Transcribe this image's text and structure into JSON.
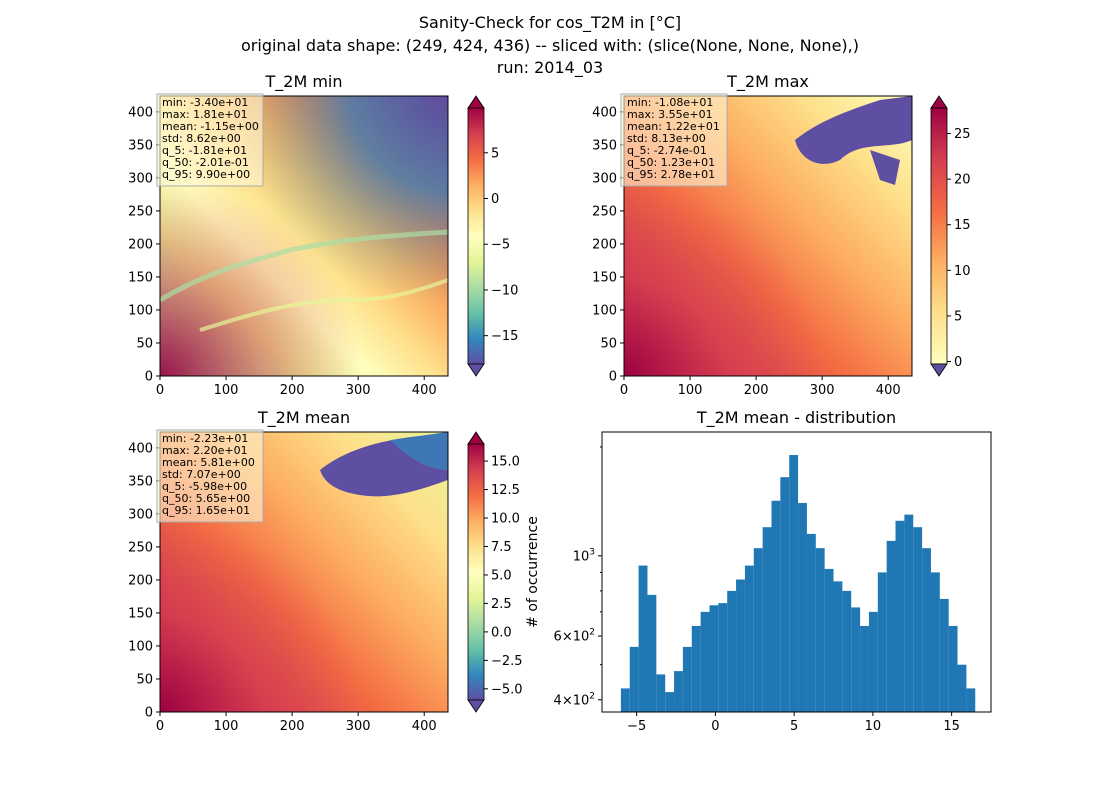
{
  "suptitle": [
    "Sanity-Check for cos_T2M in [°C]",
    "original data shape: (249, 424, 436) -- sliced with: (slice(None, None, None),)",
    "run: 2014_03"
  ],
  "colors": {
    "spectral": [
      "#5e4fa2",
      "#3288bd",
      "#66c2a5",
      "#abdda4",
      "#e6f598",
      "#ffffbf",
      "#fee08b",
      "#fdae61",
      "#f46d43",
      "#d53e4f",
      "#9e0142"
    ],
    "bar": "#1f77b4",
    "stats_box": "#fff7d6"
  },
  "map_axes": {
    "x_ticks": [
      0,
      100,
      200,
      300,
      400
    ],
    "y_ticks": [
      0,
      50,
      100,
      150,
      200,
      250,
      300,
      350,
      400
    ],
    "x_range": [
      0,
      436
    ],
    "y_range": [
      0,
      424
    ]
  },
  "panels": {
    "min": {
      "title": "T_2M min",
      "stats": [
        "min: -3.40e+01",
        "max: 1.81e+01",
        "mean: -1.15e+00",
        "std: 8.62e+00",
        "q_5: -1.81e+01",
        "q_50: -2.01e-01",
        "q_95: 9.90e+00"
      ],
      "colorbar": {
        "range": [
          -18.1,
          9.9
        ],
        "ticks": [
          5,
          0,
          -5,
          -10,
          -15
        ],
        "tick_labels": [
          "5",
          "0",
          "−5",
          "−10",
          "−15"
        ]
      }
    },
    "max": {
      "title": "T_2M max",
      "stats": [
        "min: -1.08e+01",
        "max: 3.55e+01",
        "mean: 1.22e+01",
        "std: 8.13e+00",
        "q_5: -2.74e-01",
        "q_50: 1.23e+01",
        "q_95: 2.78e+01"
      ],
      "colorbar": {
        "range": [
          -0.274,
          27.8
        ],
        "ticks": [
          25,
          20,
          15,
          10,
          5,
          0
        ],
        "tick_labels": [
          "25",
          "20",
          "15",
          "10",
          "5",
          "0"
        ]
      }
    },
    "mean": {
      "title": "T_2M mean",
      "stats": [
        "min: -2.23e+01",
        "max: 2.20e+01",
        "mean: 5.81e+00",
        "std: 7.07e+00",
        "q_5: -5.98e+00",
        "q_50: 5.65e+00",
        "q_95: 1.65e+01"
      ],
      "colorbar": {
        "range": [
          -5.98,
          16.5
        ],
        "ticks": [
          15,
          12.5,
          10,
          7.5,
          5,
          2.5,
          0,
          -2.5,
          -5
        ],
        "tick_labels": [
          "15.0",
          "12.5",
          "10.0",
          "7.5",
          "5.0",
          "2.5",
          "0.0",
          "−2.5",
          "−5.0"
        ]
      }
    }
  },
  "chart_data": {
    "type": "bar",
    "title": "T_2M mean - distribution",
    "xlabel": "",
    "ylabel": "# of occurrence",
    "xlim": [
      -7.2,
      17.5
    ],
    "ylim": [
      370,
      2200
    ],
    "yscale": "log",
    "x_ticks": [
      -5,
      0,
      5,
      10,
      15
    ],
    "x_tick_labels": [
      "−5",
      "0",
      "5",
      "10",
      "15"
    ],
    "y_ticks": [
      1000,
      600,
      400
    ],
    "y_tick_labels_base": [
      "10",
      "6×10",
      "4×10"
    ],
    "y_tick_labels_exp": [
      "3",
      "2",
      "2"
    ],
    "bin_range": [
      -6.0,
      16.5
    ],
    "bin_count": 40,
    "values": [
      430,
      560,
      940,
      780,
      470,
      420,
      480,
      560,
      640,
      700,
      730,
      740,
      800,
      860,
      940,
      1050,
      1200,
      1420,
      1650,
      1900,
      1400,
      1150,
      1050,
      920,
      850,
      800,
      720,
      640,
      700,
      900,
      1100,
      1250,
      1300,
      1200,
      1050,
      900,
      760,
      640,
      500,
      430
    ]
  }
}
